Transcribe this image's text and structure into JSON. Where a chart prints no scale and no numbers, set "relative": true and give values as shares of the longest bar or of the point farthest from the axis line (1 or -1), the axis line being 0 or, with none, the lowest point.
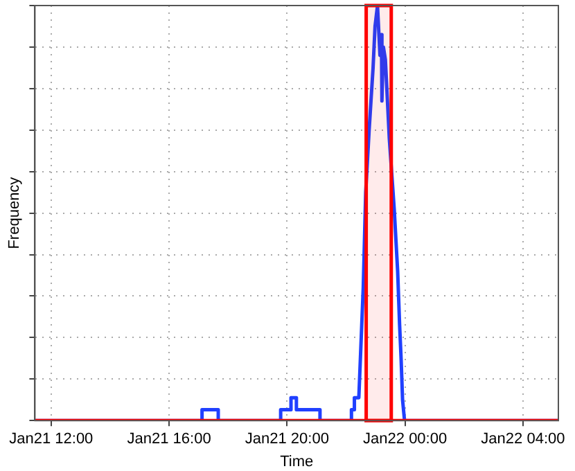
{
  "chart_data": {
    "type": "line",
    "xlabel": "Time",
    "ylabel": "Frequency",
    "relative": true,
    "xlim": [
      "--01-21T11:27",
      "--01-22T05:12"
    ],
    "xticks": [
      {
        "value": "--01-21T12:00",
        "label": "Jan21 12:00"
      },
      {
        "value": "--01-21T16:00",
        "label": "Jan21 16:00"
      },
      {
        "value": "--01-21T20:00",
        "label": "Jan21 20:00"
      },
      {
        "value": "--01-22T00:00",
        "label": "Jan22 00:00"
      },
      {
        "value": "--01-22T04:00",
        "label": "Jan22 04:00"
      }
    ],
    "series": [
      {
        "color": "#2040ff",
        "x": [
          "--01-21T11:27",
          "--01-21T17:07",
          "--01-21T17:07",
          "--01-21T17:40",
          "--01-21T17:40",
          "--01-21T19:47",
          "--01-21T19:47",
          "--01-21T20:08",
          "--01-21T20:08",
          "--01-21T20:19",
          "--01-21T20:19",
          "--01-21T21:07",
          "--01-21T21:07",
          "--01-21T22:11",
          "--01-21T22:11",
          "--01-21T22:17",
          "--01-21T22:17",
          "--01-21T22:26",
          "--01-21T22:35",
          "--01-21T22:40",
          "--01-21T22:47",
          "--01-21T22:55",
          "--01-21T22:59",
          "--01-21T23:04",
          "--01-21T23:09",
          "--01-21T23:12",
          "--01-21T23:13",
          "--01-21T23:16",
          "--01-21T23:20",
          "--01-21T23:23",
          "--01-21T23:28",
          "--01-21T23:38",
          "--01-21T23:45",
          "--01-21T23:49",
          "--01-21T23:52",
          "--01-21T23:55",
          "--01-21T23:59",
          "--01-22T05:12"
        ],
        "values": [
          0,
          0,
          0.026,
          0.026,
          0,
          0,
          0.026,
          0.026,
          0.055,
          0.055,
          0.026,
          0.026,
          0,
          0,
          0.026,
          0.026,
          0.055,
          0.055,
          0.32,
          0.55,
          0.7,
          0.85,
          0.95,
          1,
          0.88,
          0.93,
          0.77,
          0.9,
          0.87,
          0.8,
          0.68,
          0.51,
          0.36,
          0.23,
          0.15,
          0.05,
          0,
          0
        ]
      },
      {
        "color": "#ff0000",
        "x": [
          "--01-21T11:27",
          "--01-22T05:12"
        ],
        "values": [
          0,
          0
        ]
      }
    ],
    "bands": [
      {
        "axis": "x",
        "from": "--01-21T22:41",
        "to": "--01-21T23:32",
        "color": "#ff0000"
      }
    ],
    "grid": true,
    "tick_labels": "x",
    "marker": "none",
    "line_style": "solid",
    "legend": false
  }
}
